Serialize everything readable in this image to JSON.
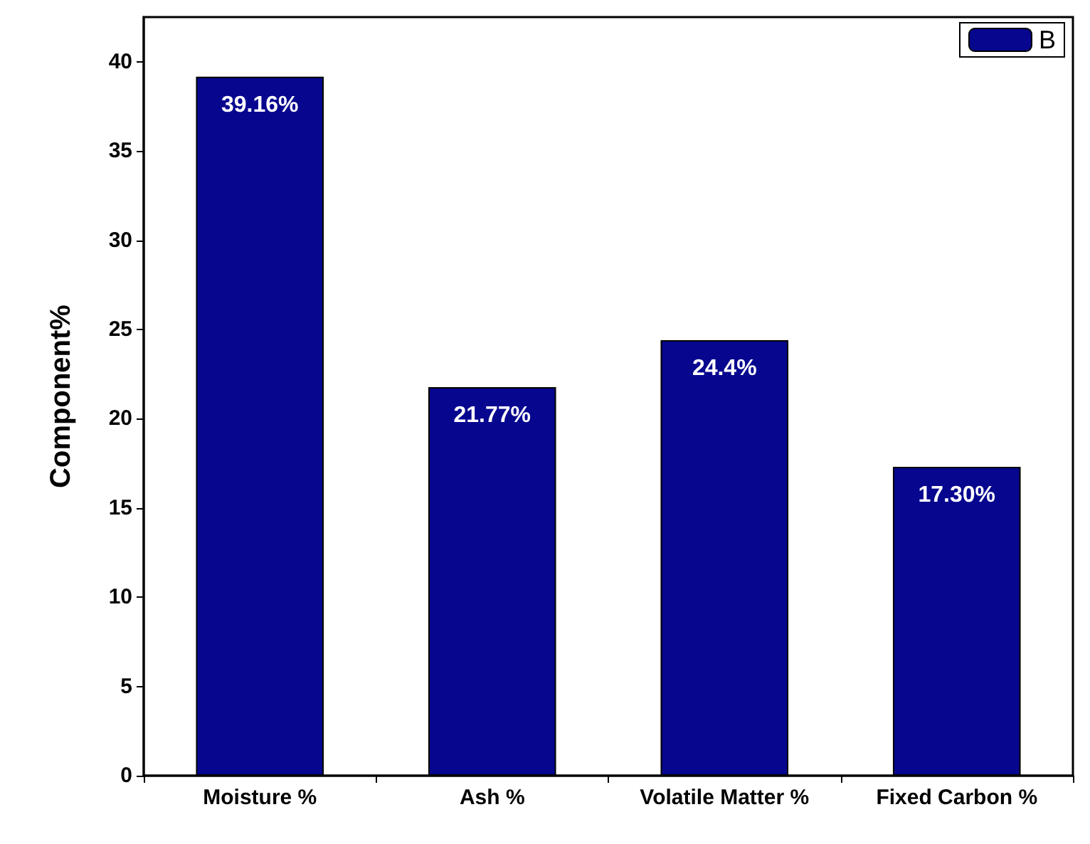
{
  "chart_data": {
    "type": "bar",
    "ylabel": "Component%",
    "categories": [
      "Moisture %",
      "Ash %",
      "Volatile Matter %",
      "Fixed Carbon %"
    ],
    "series": [
      {
        "name": "B",
        "color": "#06068f",
        "values": [
          39.16,
          21.77,
          24.4,
          17.3
        ],
        "value_labels": [
          "39.16%",
          "21.77%",
          "24.4%",
          "17.30%"
        ]
      }
    ],
    "ylim": [
      0,
      42.5
    ],
    "yticks": [
      0,
      5,
      10,
      15,
      20,
      25,
      30,
      35,
      40
    ],
    "grid": false,
    "legend": "top right"
  }
}
